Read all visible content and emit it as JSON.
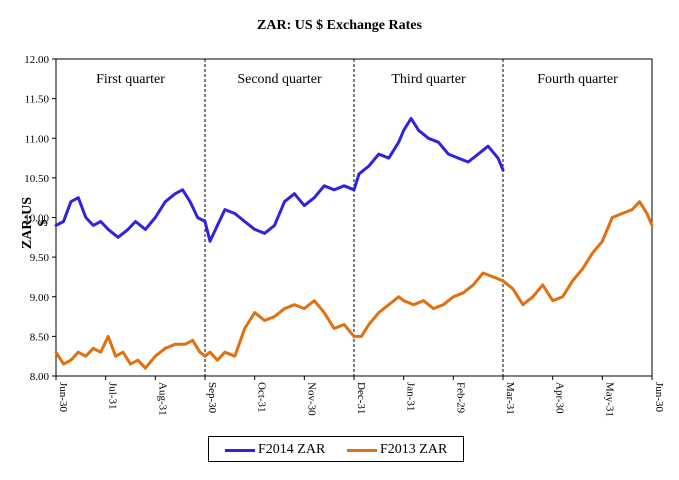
{
  "chart_data": {
    "type": "line",
    "title": "ZAR: US $ Exchange Rates",
    "xlabel": "",
    "ylabel": "ZAR:US $",
    "ylim": [
      8.0,
      12.0
    ],
    "yticks": [
      "8.00",
      "8.50",
      "9.00",
      "9.50",
      "10.00",
      "10.50",
      "11.00",
      "11.50",
      "12.00"
    ],
    "xticks": [
      "Jun-30",
      "Jul-31",
      "Aug-31",
      "Sep-30",
      "Oct-31",
      "Nov-30",
      "Dec-31",
      "Jan-31",
      "Feb-29",
      "Mar-31",
      "Apr-30",
      "May-31",
      "Jun-30"
    ],
    "quarters": [
      "First quarter",
      "Second quarter",
      "Third quarter",
      "Fourth quarter"
    ],
    "legend": [
      "F2014 ZAR",
      "F2013 ZAR"
    ],
    "colors": {
      "F2014": "#3322dd",
      "F2013": "#e07010"
    },
    "series": [
      {
        "name": "F2014 ZAR",
        "month_index": [
          0,
          0.15,
          0.3,
          0.45,
          0.6,
          0.75,
          0.9,
          1.05,
          1.25,
          1.45,
          1.6,
          1.8,
          2.0,
          2.2,
          2.4,
          2.55,
          2.7,
          2.85,
          3.0,
          3.1,
          3.25,
          3.4,
          3.6,
          3.8,
          4.0,
          4.2,
          4.4,
          4.6,
          4.8,
          5.0,
          5.2,
          5.4,
          5.6,
          5.8,
          6.0,
          6.1,
          6.3,
          6.5,
          6.7,
          6.9,
          7.0,
          7.15,
          7.3,
          7.5,
          7.7,
          7.9,
          8.1,
          8.3,
          8.5,
          8.7,
          8.9,
          9.0
        ],
        "values": [
          9.9,
          9.95,
          10.2,
          10.25,
          10.0,
          9.9,
          9.95,
          9.85,
          9.75,
          9.85,
          9.95,
          9.85,
          10.0,
          10.2,
          10.3,
          10.35,
          10.2,
          10.0,
          9.95,
          9.7,
          9.9,
          10.1,
          10.05,
          9.95,
          9.85,
          9.8,
          9.9,
          10.2,
          10.3,
          10.15,
          10.25,
          10.4,
          10.35,
          10.4,
          10.35,
          10.55,
          10.65,
          10.8,
          10.75,
          10.95,
          11.1,
          11.25,
          11.1,
          11.0,
          10.95,
          10.8,
          10.75,
          10.7,
          10.8,
          10.9,
          10.75,
          10.6
        ]
      },
      {
        "name": "F2013 ZAR",
        "month_index": [
          0,
          0.15,
          0.3,
          0.45,
          0.6,
          0.75,
          0.9,
          1.05,
          1.2,
          1.35,
          1.5,
          1.65,
          1.8,
          2.0,
          2.2,
          2.4,
          2.6,
          2.75,
          2.9,
          3.0,
          3.1,
          3.25,
          3.4,
          3.6,
          3.8,
          4.0,
          4.2,
          4.4,
          4.6,
          4.8,
          5.0,
          5.2,
          5.4,
          5.6,
          5.8,
          6.0,
          6.15,
          6.3,
          6.5,
          6.7,
          6.9,
          7.0,
          7.2,
          7.4,
          7.6,
          7.8,
          8.0,
          8.2,
          8.4,
          8.6,
          8.8,
          9.0,
          9.2,
          9.4,
          9.6,
          9.8,
          10.0,
          10.2,
          10.4,
          10.6,
          10.8,
          11.0,
          11.2,
          11.4,
          11.6,
          11.75,
          11.9,
          12.0
        ],
        "values": [
          8.3,
          8.15,
          8.2,
          8.3,
          8.25,
          8.35,
          8.3,
          8.5,
          8.25,
          8.3,
          8.15,
          8.2,
          8.1,
          8.25,
          8.35,
          8.4,
          8.4,
          8.45,
          8.3,
          8.25,
          8.3,
          8.2,
          8.3,
          8.25,
          8.6,
          8.8,
          8.7,
          8.75,
          8.85,
          8.9,
          8.85,
          8.95,
          8.8,
          8.6,
          8.65,
          8.5,
          8.5,
          8.65,
          8.8,
          8.9,
          9.0,
          8.95,
          8.9,
          8.95,
          8.85,
          8.9,
          9.0,
          9.05,
          9.15,
          9.3,
          9.25,
          9.2,
          9.1,
          8.9,
          9.0,
          9.15,
          8.95,
          9.0,
          9.2,
          9.35,
          9.55,
          9.7,
          10.0,
          10.05,
          10.1,
          10.2,
          10.05,
          9.9
        ]
      }
    ]
  }
}
